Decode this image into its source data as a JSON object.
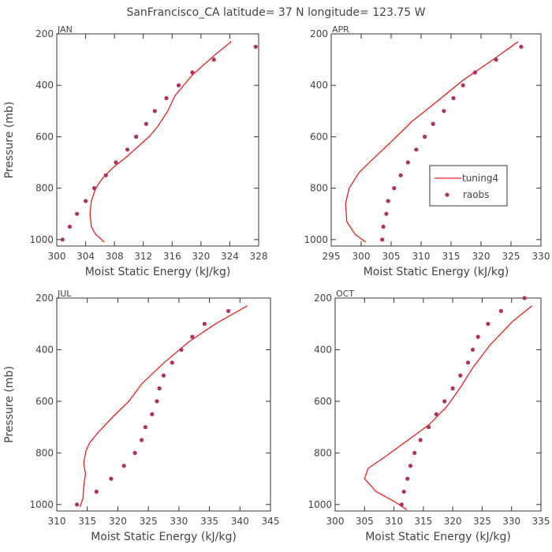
{
  "title": "SanFrancisco_CA  latitude= 37 N longitude= 123.75 W",
  "colors": {
    "model": "#e8201c",
    "obs": "#b03060",
    "frame": "#333333",
    "text": "#444444"
  },
  "legend": {
    "model_label": "tuning4",
    "obs_label": "raobs",
    "panel": 1
  },
  "chart_data": [
    {
      "type": "line",
      "month": "JAN",
      "xlabel": "Moist Static Energy (kJ/kg)",
      "ylabel": "Pressure (mb)",
      "xlim": [
        300,
        328
      ],
      "xticks": [
        300,
        304,
        308,
        312,
        316,
        320,
        324,
        328
      ],
      "ylim": [
        1025,
        200
      ],
      "yticks": [
        200,
        400,
        600,
        800,
        1000
      ],
      "series": [
        {
          "name": "tuning4",
          "style": "line",
          "x": [
            306.6,
            306.2,
            305.4,
            304.8,
            304.6,
            304.8,
            305.4,
            306.4,
            307.8,
            309.6,
            311.2,
            312.8,
            314.0,
            315.4,
            316.4,
            318.8,
            322.0,
            324.2
          ],
          "y": [
            1010,
            1000,
            980,
            950,
            900,
            850,
            800,
            760,
            720,
            680,
            640,
            600,
            560,
            500,
            440,
            360,
            280,
            230
          ]
        },
        {
          "name": "raobs",
          "style": "marker",
          "x": [
            300.8,
            301.8,
            302.8,
            304.0,
            305.2,
            306.8,
            308.2,
            309.8,
            311.0,
            312.4,
            313.6,
            315.2,
            316.9,
            318.8,
            321.8,
            327.6
          ],
          "y": [
            1000,
            950,
            900,
            850,
            800,
            750,
            700,
            650,
            600,
            550,
            500,
            450,
            400,
            350,
            300,
            250
          ]
        }
      ]
    },
    {
      "type": "line",
      "month": "APR",
      "xlabel": "Moist Static Energy (kJ/kg)",
      "ylabel": "",
      "xlim": [
        295,
        330
      ],
      "xticks": [
        295,
        300,
        305,
        310,
        315,
        320,
        325,
        330
      ],
      "ylim": [
        1025,
        200
      ],
      "yticks": [
        200,
        400,
        600,
        800,
        1000
      ],
      "series": [
        {
          "name": "tuning4",
          "style": "line",
          "x": [
            300.8,
            299.0,
            297.6,
            297.4,
            298.0,
            299.6,
            301.8,
            305.0,
            308.5,
            312.8,
            317.0,
            322.0,
            326.2
          ],
          "y": [
            1010,
            980,
            930,
            860,
            800,
            740,
            690,
            620,
            540,
            460,
            380,
            300,
            230
          ]
        },
        {
          "name": "raobs",
          "style": "marker",
          "x": [
            303.5,
            303.7,
            304.2,
            304.5,
            305.5,
            306.6,
            307.8,
            309.2,
            310.6,
            312.0,
            313.8,
            315.4,
            317.0,
            319.0,
            322.5,
            326.7
          ],
          "y": [
            1000,
            950,
            900,
            850,
            800,
            750,
            700,
            650,
            600,
            550,
            500,
            450,
            400,
            350,
            300,
            250
          ]
        }
      ]
    },
    {
      "type": "line",
      "month": "JUL",
      "xlabel": "Moist Static Energy (kJ/kg)",
      "ylabel": "Pressure (mb)",
      "xlim": [
        310,
        345
      ],
      "xticks": [
        310,
        315,
        320,
        325,
        330,
        335,
        340,
        345
      ],
      "ylim": [
        1025,
        200
      ],
      "yticks": [
        200,
        400,
        600,
        800,
        1000
      ],
      "series": [
        {
          "name": "tuning4",
          "style": "line",
          "x": [
            313.8,
            314.3,
            314.4,
            314.7,
            314.4,
            314.8,
            315.4,
            316.8,
            319.2,
            321.8,
            324.0,
            327.6,
            331.6,
            336.0,
            341.2
          ],
          "y": [
            1010,
            975,
            930,
            880,
            840,
            790,
            760,
            720,
            660,
            600,
            530,
            450,
            370,
            300,
            230
          ]
        },
        {
          "name": "raobs",
          "style": "marker",
          "x": [
            313.3,
            316.5,
            318.9,
            321.0,
            322.8,
            323.9,
            324.5,
            325.6,
            326.4,
            326.8,
            327.5,
            328.9,
            330.4,
            332.2,
            334.2,
            338.1
          ],
          "y": [
            1000,
            950,
            900,
            850,
            800,
            750,
            700,
            650,
            600,
            550,
            500,
            450,
            400,
            350,
            300,
            250
          ]
        }
      ]
    },
    {
      "type": "line",
      "month": "OCT",
      "xlabel": "Moist Static Energy (kJ/kg)",
      "ylabel": "",
      "xlim": [
        300,
        335
      ],
      "xticks": [
        300,
        305,
        310,
        315,
        320,
        325,
        330,
        335
      ],
      "ylim": [
        1025,
        200
      ],
      "yticks": [
        200,
        400,
        600,
        800,
        1000
      ],
      "series": [
        {
          "name": "tuning4",
          "style": "line",
          "x": [
            312.2,
            310.2,
            307.0,
            305.0,
            305.6,
            308.8,
            312.4,
            316.0,
            319.0,
            321.2,
            323.4,
            326.4,
            330.2,
            333.5
          ],
          "y": [
            1020,
            990,
            950,
            900,
            860,
            810,
            750,
            690,
            620,
            550,
            470,
            380,
            290,
            230
          ]
        },
        {
          "name": "raobs",
          "style": "marker",
          "x": [
            311.3,
            311.7,
            312.3,
            312.8,
            313.5,
            314.5,
            315.9,
            317.2,
            318.6,
            320.0,
            321.3,
            322.6,
            323.4,
            324.3,
            326.0,
            328.2,
            332.2
          ],
          "y": [
            1000,
            950,
            900,
            850,
            800,
            750,
            700,
            650,
            600,
            550,
            500,
            450,
            400,
            350,
            300,
            250,
            200
          ]
        }
      ]
    }
  ]
}
